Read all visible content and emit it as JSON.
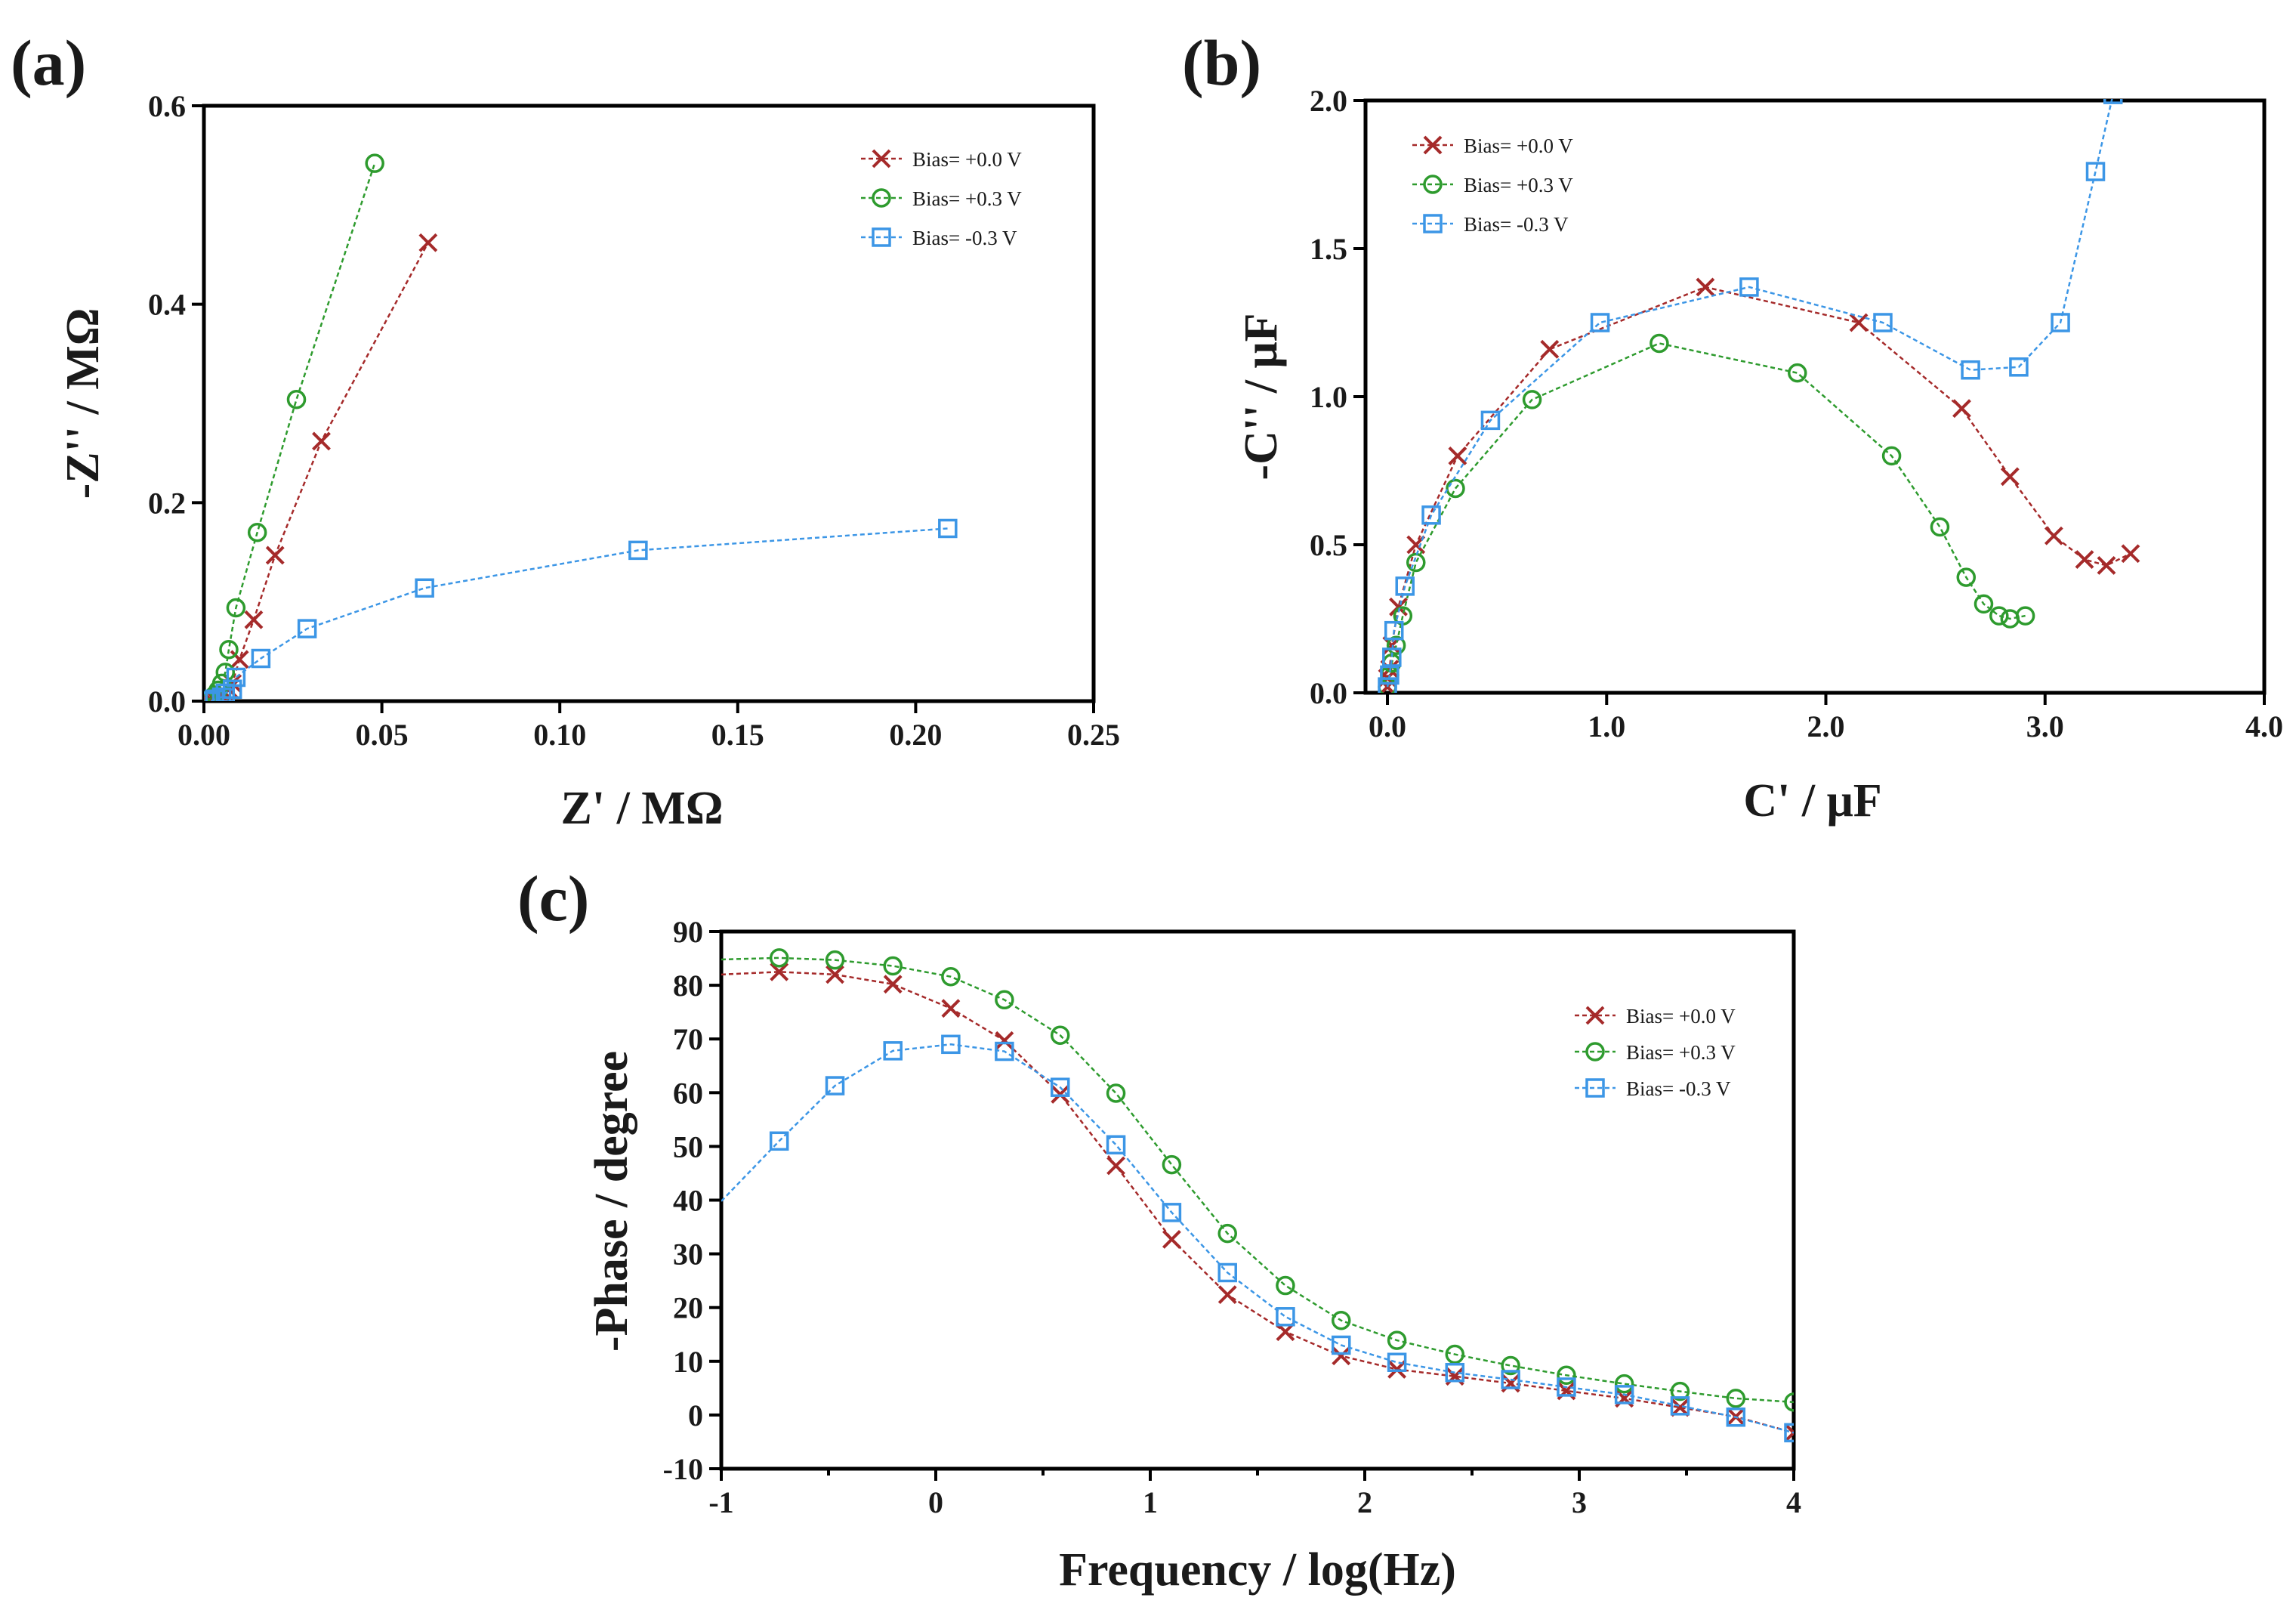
{
  "colors": {
    "bias_0": "#a52a2a",
    "bias_p3": "#2e9b2e",
    "bias_m3": "#3c96e6"
  },
  "legend_labels": [
    "Bias= +0.0 V",
    "Bias= +0.3 V",
    "Bias= -0.3 V"
  ],
  "chart_data": [
    {
      "panel": "(a)",
      "type": "scatter",
      "xlabel": "Z' / MΩ",
      "ylabel": "-Z'' / MΩ",
      "xlim": [
        0,
        0.25
      ],
      "ylim": [
        0,
        0.6
      ],
      "xticks": [
        0,
        0.05,
        0.1,
        0.15,
        0.2,
        0.25
      ],
      "xtick_labels": [
        "0.00",
        "0.05",
        "0.10",
        "0.15",
        "0.20",
        "0.25"
      ],
      "yticks": [
        0,
        0.2,
        0.4,
        0.6
      ],
      "ytick_labels": [
        "0.0",
        "0.2",
        "0.4",
        "0.6"
      ],
      "legend": "top-right",
      "series": [
        {
          "name": "Bias= +0.0 V",
          "marker": "x",
          "x": [
            0.001,
            0.002,
            0.003,
            0.004,
            0.005,
            0.006,
            0.007,
            0.008,
            0.01,
            0.014,
            0.02,
            0.033,
            0.063
          ],
          "y": [
            0.0,
            0.001,
            0.002,
            0.003,
            0.005,
            0.008,
            0.012,
            0.018,
            0.042,
            0.082,
            0.147,
            0.262,
            0.462
          ]
        },
        {
          "name": "Bias= +0.3 V",
          "marker": "o",
          "x": [
            0.001,
            0.002,
            0.003,
            0.004,
            0.005,
            0.006,
            0.007,
            0.009,
            0.015,
            0.026,
            0.048
          ],
          "y": [
            0.001,
            0.003,
            0.006,
            0.011,
            0.018,
            0.029,
            0.052,
            0.094,
            0.17,
            0.304,
            0.542
          ]
        },
        {
          "name": "Bias= -0.3 V",
          "marker": "s",
          "x": [
            0.002,
            0.003,
            0.005,
            0.006,
            0.008,
            0.009,
            0.016,
            0.029,
            0.062,
            0.122,
            0.209
          ],
          "y": [
            0.0,
            0.002,
            0.004,
            0.008,
            0.012,
            0.024,
            0.043,
            0.073,
            0.114,
            0.152,
            0.174
          ]
        }
      ]
    },
    {
      "panel": "(b)",
      "type": "scatter",
      "xlabel": "C' / μF",
      "ylabel": "-C'' / μF",
      "xlim": [
        -0.1,
        4.0
      ],
      "ylim": [
        0,
        2.0
      ],
      "xticks": [
        0,
        1,
        2,
        3,
        4
      ],
      "xtick_labels": [
        "0.0",
        "1.0",
        "2.0",
        "3.0",
        "4.0"
      ],
      "yticks": [
        0,
        0.5,
        1.0,
        1.5,
        2.0
      ],
      "ytick_labels": [
        "0.0",
        "0.5",
        "1.0",
        "1.5",
        "2.0"
      ],
      "legend": "top-left",
      "series": [
        {
          "name": "Bias= +0.0 V",
          "marker": "x",
          "x": [
            0.0,
            0.0,
            0.01,
            0.02,
            0.05,
            0.13,
            0.32,
            0.74,
            1.45,
            2.15,
            2.62,
            2.84,
            3.04,
            3.18,
            3.28,
            3.39
          ],
          "y": [
            0.02,
            0.05,
            0.08,
            0.16,
            0.29,
            0.5,
            0.8,
            1.16,
            1.37,
            1.25,
            0.96,
            0.73,
            0.53,
            0.45,
            0.43,
            0.47
          ]
        },
        {
          "name": "Bias= +0.3 V",
          "marker": "o",
          "x": [
            0.0,
            0.01,
            0.02,
            0.04,
            0.07,
            0.13,
            0.31,
            0.66,
            1.24,
            1.87,
            2.3,
            2.52,
            2.64,
            2.72,
            2.79,
            2.84,
            2.91
          ],
          "y": [
            0.02,
            0.06,
            0.1,
            0.16,
            0.26,
            0.44,
            0.69,
            0.99,
            1.18,
            1.08,
            0.8,
            0.56,
            0.39,
            0.3,
            0.26,
            0.25,
            0.26
          ]
        },
        {
          "name": "Bias= -0.3 V",
          "marker": "s",
          "x": [
            0.0,
            0.01,
            0.02,
            0.03,
            0.08,
            0.2,
            0.47,
            0.97,
            1.65,
            2.26,
            2.66,
            2.88,
            3.07,
            3.23,
            3.31
          ],
          "y": [
            0.02,
            0.06,
            0.12,
            0.21,
            0.36,
            0.6,
            0.92,
            1.25,
            1.37,
            1.25,
            1.09,
            1.1,
            1.25,
            1.76,
            2.02
          ]
        }
      ]
    },
    {
      "panel": "(c)",
      "type": "line",
      "xlabel": "Frequency / log(Hz)",
      "ylabel": "-Phase / degree",
      "xlim": [
        -1,
        4
      ],
      "ylim": [
        -10,
        90
      ],
      "xticks": [
        -1,
        0,
        1,
        2,
        3,
        4
      ],
      "xtick_labels": [
        "-1",
        "0",
        "1",
        "2",
        "3",
        "4"
      ],
      "yticks": [
        -10,
        0,
        10,
        20,
        30,
        40,
        50,
        60,
        70,
        80,
        90
      ],
      "ytick_labels": [
        "-10",
        "0",
        "10",
        "20",
        "30",
        "40",
        "50",
        "60",
        "70",
        "80",
        "90"
      ],
      "legend": "top-right",
      "series": [
        {
          "name": "Bias= +0.0 V",
          "marker": "x",
          "x": [
            -1.0,
            -0.73,
            -0.47,
            -0.2,
            0.07,
            0.32,
            0.58,
            0.84,
            1.1,
            1.36,
            1.63,
            1.89,
            2.15,
            2.42,
            2.68,
            2.94,
            3.21,
            3.47,
            3.73,
            4.0
          ],
          "y": [
            82.0,
            82.5,
            82.0,
            80.2,
            75.7,
            69.7,
            59.7,
            46.4,
            32.7,
            22.4,
            15.5,
            11.0,
            8.5,
            7.2,
            5.9,
            4.5,
            3.1,
            1.4,
            -0.3,
            -3.3
          ],
          "markers_from": 1
        },
        {
          "name": "Bias= +0.3 V",
          "marker": "o",
          "x": [
            -1.0,
            -0.73,
            -0.47,
            -0.2,
            0.07,
            0.32,
            0.58,
            0.84,
            1.1,
            1.36,
            1.63,
            1.89,
            2.15,
            2.42,
            2.68,
            2.94,
            3.21,
            3.47,
            3.73,
            4.0
          ],
          "y": [
            84.8,
            85.1,
            84.7,
            83.6,
            81.6,
            77.3,
            70.7,
            59.9,
            46.6,
            33.8,
            24.1,
            17.6,
            13.9,
            11.3,
            9.2,
            7.4,
            5.8,
            4.4,
            3.1,
            2.4
          ],
          "markers_from": 1
        },
        {
          "name": "Bias= -0.3 V",
          "marker": "s",
          "x": [
            -1.0,
            -0.73,
            -0.47,
            -0.2,
            0.07,
            0.32,
            0.58,
            0.84,
            1.1,
            1.36,
            1.63,
            1.89,
            2.15,
            2.42,
            2.68,
            2.94,
            3.21,
            3.47,
            3.73,
            4.0
          ],
          "y": [
            39.8,
            51.0,
            61.3,
            67.8,
            69.0,
            67.7,
            61.0,
            50.3,
            37.7,
            26.5,
            18.3,
            13.0,
            9.8,
            7.9,
            6.6,
            5.2,
            3.8,
            1.7,
            -0.4,
            -3.3
          ],
          "markers_from": 1
        }
      ]
    }
  ]
}
